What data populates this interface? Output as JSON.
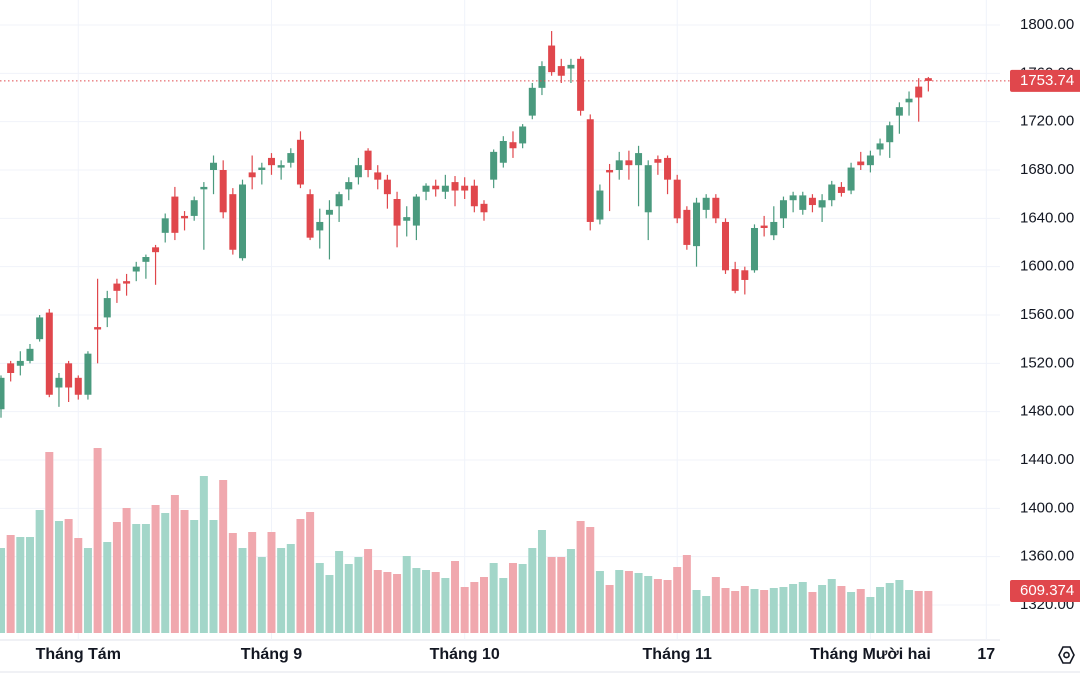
{
  "chart_data": {
    "type": "candlestick",
    "categories": [
      null,
      null,
      null,
      null,
      null,
      null,
      null,
      null,
      "Tháng Tám",
      null,
      null,
      null,
      null,
      null,
      null,
      null,
      null,
      null,
      null,
      null,
      null,
      null,
      null,
      null,
      null,
      null,
      null,
      null,
      "Tháng 9",
      null,
      null,
      null,
      null,
      null,
      null,
      null,
      null,
      null,
      null,
      null,
      null,
      null,
      null,
      null,
      null,
      null,
      null,
      null,
      "Tháng 10",
      null,
      null,
      null,
      null,
      null,
      null,
      null,
      null,
      null,
      null,
      null,
      null,
      null,
      null,
      null,
      null,
      null,
      null,
      null,
      null,
      null,
      "Tháng 11",
      null,
      null,
      null,
      null,
      null,
      null,
      null,
      null,
      null,
      null,
      null,
      null,
      null,
      null,
      null,
      null,
      null,
      null,
      null,
      "Tháng Mười hai",
      null,
      null,
      null,
      null,
      null,
      null,
      null,
      null,
      null,
      null,
      null,
      "17"
    ],
    "open": [
      1482,
      1520,
      1518,
      1522,
      1540,
      1562,
      1500,
      1520,
      1508,
      1494,
      1550,
      1558,
      1586,
      1588,
      1596,
      1604,
      1616,
      1628,
      1658,
      1642,
      1642,
      1664,
      1680,
      1680,
      1660,
      1607,
      1678,
      1680,
      1690,
      1682,
      1686,
      1705,
      1660,
      1630,
      1643,
      1650,
      1664,
      1674,
      1696,
      1678,
      1672,
      1656,
      1638,
      1634,
      1662,
      1667,
      1662,
      1670,
      1667,
      1667,
      1652,
      1672,
      1686,
      1703,
      1702,
      1725,
      1748,
      1783,
      1766,
      1764,
      1772,
      1722,
      1639,
      1680,
      1680,
      1688,
      1684,
      1645,
      1689,
      1690,
      1672,
      1647,
      1617,
      1647,
      1657,
      1637,
      1598,
      1597,
      1597,
      1634,
      1626,
      1640,
      1655,
      1647,
      1657,
      1649,
      1655,
      1666,
      1663,
      1687,
      1684,
      1697,
      1703,
      1725,
      1736,
      1749,
      1756,
      null,
      null,
      null,
      null,
      null,
      null
    ],
    "high": [
      1510,
      1522,
      1530,
      1536,
      1560,
      1565,
      1512,
      1522,
      1510,
      1530,
      1590,
      1580,
      1590,
      1594,
      1604,
      1610,
      1618,
      1644,
      1666,
      1646,
      1658,
      1670,
      1692,
      1688,
      1665,
      1672,
      1692,
      1686,
      1694,
      1688,
      1698,
      1712,
      1664,
      1648,
      1655,
      1662,
      1674,
      1690,
      1698,
      1684,
      1676,
      1662,
      1650,
      1660,
      1669,
      1672,
      1676,
      1675,
      1674,
      1672,
      1655,
      1697,
      1708,
      1712,
      1718,
      1752,
      1770,
      1795,
      1772,
      1772,
      1774,
      1726,
      1668,
      1685,
      1695,
      1696,
      1700,
      1688,
      1692,
      1692,
      1676,
      1650,
      1657,
      1660,
      1660,
      1640,
      1604,
      1600,
      1635,
      1642,
      1650,
      1658,
      1662,
      1662,
      1660,
      1660,
      1671,
      1670,
      1686,
      1695,
      1696,
      1706,
      1720,
      1736,
      1745,
      1756,
      1757,
      null,
      null,
      null,
      null,
      null,
      null
    ],
    "low": [
      1475,
      1505,
      1510,
      1520,
      1538,
      1492,
      1484,
      1488,
      1490,
      1490,
      1520,
      1550,
      1570,
      1576,
      1588,
      1590,
      1585,
      1620,
      1622,
      1630,
      1638,
      1614,
      1660,
      1640,
      1610,
      1605,
      1664,
      1668,
      1676,
      1672,
      1682,
      1665,
      1622,
      1615,
      1606,
      1637,
      1655,
      1668,
      1674,
      1664,
      1648,
      1616,
      1625,
      1622,
      1655,
      1658,
      1656,
      1650,
      1656,
      1645,
      1638,
      1665,
      1682,
      1690,
      1698,
      1722,
      1742,
      1758,
      1752,
      1752,
      1725,
      1630,
      1635,
      1646,
      1672,
      1672,
      1650,
      1622,
      1676,
      1660,
      1636,
      1614,
      1600,
      1640,
      1636,
      1594,
      1578,
      1577,
      1595,
      1625,
      1622,
      1632,
      1645,
      1643,
      1645,
      1637,
      1650,
      1658,
      1660,
      1680,
      1678,
      1692,
      1690,
      1710,
      1725,
      1720,
      1745,
      null,
      null,
      null,
      null,
      null,
      null
    ],
    "close": [
      1508,
      1512,
      1522,
      1532,
      1558,
      1494,
      1508,
      1500,
      1494,
      1528,
      1548,
      1574,
      1580,
      1586,
      1600,
      1608,
      1612,
      1640,
      1628,
      1640,
      1655,
      1666,
      1686,
      1645,
      1614,
      1668,
      1674,
      1682,
      1684,
      1684,
      1694,
      1668,
      1624,
      1637,
      1647,
      1660,
      1670,
      1684,
      1680,
      1672,
      1660,
      1634,
      1641,
      1658,
      1667,
      1664,
      1667,
      1663,
      1663,
      1650,
      1645,
      1695,
      1704,
      1698,
      1716,
      1748,
      1766,
      1761,
      1758,
      1767,
      1729,
      1637,
      1663,
      1678,
      1688,
      1684,
      1694,
      1684,
      1686,
      1672,
      1640,
      1618,
      1653,
      1657,
      1640,
      1597,
      1580,
      1589,
      1632,
      1632,
      1637,
      1655,
      1659,
      1659,
      1651,
      1655,
      1668,
      1661,
      1682,
      1684,
      1692,
      1702,
      1717,
      1732,
      1739,
      1740,
      1753.74,
      null,
      null,
      null,
      null,
      null,
      null
    ],
    "volume": [
      1232.5,
      1421,
      1392,
      1392,
      1783.5,
      2624.5,
      1624,
      1653,
      1377.5,
      1232.5,
      2682.5,
      1319.5,
      1609.5,
      1812.5,
      1580.5,
      1580.5,
      1856,
      1740,
      2001,
      1783.5,
      1638.5,
      2276.5,
      1638.5,
      2218.5,
      1450,
      1232.5,
      1464.5,
      1102,
      1464.5,
      1232.5,
      1290.5,
      1653,
      1754.5,
      1015,
      841,
      1189,
      1000.5,
      1102,
      1218,
      913.5,
      884.5,
      855.5,
      1116.5,
      942.5,
      913.5,
      884.5,
      797.5,
      1044,
      667,
      739.5,
      812,
      1015,
      797.5,
      1015,
      1000.5,
      1232.5,
      1493.5,
      1102,
      1102,
      1218,
      1624,
      1537,
      899,
      696,
      913.5,
      899,
      870,
      826.5,
      783,
      768.5,
      957,
      1131,
      623.5,
      536.5,
      812,
      652.5,
      609,
      681.5,
      638,
      623.5,
      652.5,
      667,
      710.5,
      739.5,
      594.5,
      696,
      783,
      681.5,
      594.5,
      638,
      522,
      667,
      725,
      768.5,
      623.5,
      609,
      609.374,
      null,
      null,
      null,
      null,
      null,
      null
    ],
    "up_color": "#4a9a7e",
    "down_color": "#e0474c",
    "up_volume_color": "#a3d6c9",
    "down_volume_color": "#f0a8ae",
    "ylim": [
      1320,
      1800
    ],
    "yticks": [
      {
        "value": 1320,
        "label": "1320.00"
      },
      {
        "value": 1360,
        "label": "1360.00"
      },
      {
        "value": 1400,
        "label": "1400.00"
      },
      {
        "value": 1440,
        "label": "1440.00"
      },
      {
        "value": 1480,
        "label": "1480.00"
      },
      {
        "value": 1520,
        "label": "1520.00"
      },
      {
        "value": 1560,
        "label": "1560.00"
      },
      {
        "value": 1600,
        "label": "1600.00"
      },
      {
        "value": 1640,
        "label": "1640.00"
      },
      {
        "value": 1680,
        "label": "1680.00"
      },
      {
        "value": 1720,
        "label": "1720.00"
      },
      {
        "value": 1760,
        "label": "1760.00"
      },
      {
        "value": 1800,
        "label": "1800.00"
      }
    ],
    "y2lim": [
      0,
      2900
    ],
    "grid": true,
    "last_price_label": "1753.74",
    "last_volume_label": "609.374"
  }
}
